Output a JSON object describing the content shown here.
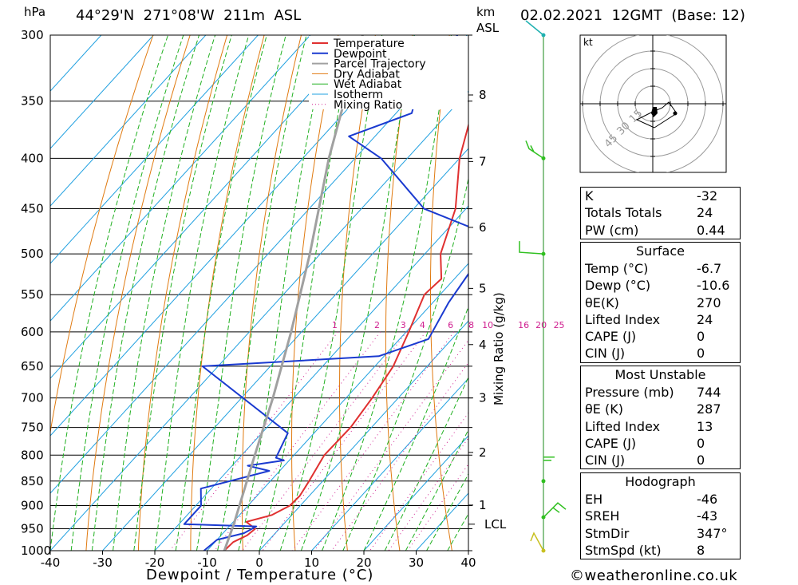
{
  "header": {
    "hpa_label": "hPa",
    "location": "44°29'N  271°08'W  211m  ASL",
    "km_label": "km",
    "asl_label": "ASL",
    "datetime": "02.02.2021  12GMT  (Base: 12)"
  },
  "colors": {
    "temperature": "#e03030",
    "dewpoint": "#1a3ad0",
    "parcel": "#a0a0a0",
    "dry_adiabat": "#e07a10",
    "wet_adiabat": "#20b020",
    "isotherm": "#20a0e0",
    "mixing_ratio": "#d02090"
  },
  "chart_data": {
    "type": "line",
    "title": "",
    "xlabel": "Dewpoint / Temperature (°C)",
    "ylabel": "hPa",
    "right_label": "Mixing Ratio (g/kg)",
    "x_ticks": [
      -40,
      -30,
      -20,
      -10,
      0,
      10,
      20,
      30,
      40
    ],
    "pressure_levels": [
      300,
      350,
      400,
      450,
      500,
      550,
      600,
      650,
      700,
      750,
      800,
      850,
      900,
      950,
      1000
    ],
    "xlim": [
      -40,
      40
    ],
    "ylim": [
      1000,
      300
    ],
    "y_scale": "log",
    "km_ticks": [
      {
        "km": "8",
        "p": 345
      },
      {
        "km": "7",
        "p": 403
      },
      {
        "km": "6",
        "p": 470
      },
      {
        "km": "5",
        "p": 542
      },
      {
        "km": "4",
        "p": 618
      },
      {
        "km": "3",
        "p": 700
      },
      {
        "km": "2",
        "p": 795
      },
      {
        "km": "1",
        "p": 899
      }
    ],
    "lcl": {
      "label": "LCL",
      "p": 940
    },
    "mixing_ratio_labels": [
      "1",
      "2",
      "3",
      "4",
      "6",
      "8",
      "10",
      "16",
      "20",
      "25"
    ],
    "legend": [
      "Temperature",
      "Dewpoint",
      "Parcel Trajectory",
      "Dry Adiabat",
      "Wet Adiabat",
      "Isotherm",
      "Mixing Ratio"
    ],
    "series": [
      {
        "name": "Temperature",
        "points": [
          [
            1000,
            -6.7
          ],
          [
            980,
            -6.5
          ],
          [
            965,
            -5.0
          ],
          [
            950,
            -4.6
          ],
          [
            935,
            -7.5
          ],
          [
            920,
            -3.8
          ],
          [
            900,
            -2.0
          ],
          [
            880,
            -1.8
          ],
          [
            850,
            -2.6
          ],
          [
            800,
            -4.2
          ],
          [
            750,
            -4.0
          ],
          [
            700,
            -5.0
          ],
          [
            650,
            -6.5
          ],
          [
            600,
            -9.5
          ],
          [
            550,
            -13.0
          ],
          [
            530,
            -12.5
          ],
          [
            500,
            -17.0
          ],
          [
            450,
            -22.0
          ],
          [
            400,
            -30.0
          ],
          [
            350,
            -37.0
          ],
          [
            320,
            -40.0
          ],
          [
            300,
            -46.0
          ]
        ]
      },
      {
        "name": "Dewpoint",
        "points": [
          [
            1000,
            -10.6
          ],
          [
            975,
            -10.0
          ],
          [
            960,
            -6.0
          ],
          [
            945,
            -4.8
          ],
          [
            940,
            -19.0
          ],
          [
            900,
            -19.0
          ],
          [
            865,
            -22.0
          ],
          [
            830,
            -12.0
          ],
          [
            820,
            -17.0
          ],
          [
            810,
            -11.0
          ],
          [
            805,
            -13.0
          ],
          [
            760,
            -15.0
          ],
          [
            650,
            -43.0
          ],
          [
            635,
            -11.0
          ],
          [
            610,
            -4.5
          ],
          [
            560,
            -7.0
          ],
          [
            500,
            -9.0
          ],
          [
            480,
            -10.0
          ],
          [
            450,
            -28.0
          ],
          [
            400,
            -45.0
          ],
          [
            380,
            -55.0
          ],
          [
            360,
            -47.0
          ],
          [
            340,
            -50.0
          ],
          [
            320,
            -47.0
          ],
          [
            310,
            -48.0
          ],
          [
            300,
            -52.0
          ]
        ]
      },
      {
        "name": "Parcel Trajectory",
        "points": [
          [
            1000,
            -6.7
          ],
          [
            940,
            -9.5
          ],
          [
            850,
            -14.5
          ],
          [
            800,
            -17.5
          ],
          [
            700,
            -24.0
          ],
          [
            600,
            -32.0
          ],
          [
            500,
            -42.0
          ],
          [
            400,
            -55.0
          ],
          [
            350,
            -62.0
          ],
          [
            300,
            -70.0
          ]
        ]
      }
    ]
  },
  "hodograph": {
    "unit": "kt",
    "ring_labels": [
      "15",
      "30",
      "45"
    ]
  },
  "wind_barbs": [
    {
      "p": 300
    },
    {
      "p": 400
    },
    {
      "p": 500
    },
    {
      "p": 850
    },
    {
      "p": 925
    },
    {
      "p": 1000
    }
  ],
  "indices": {
    "basic": [
      {
        "label": "K",
        "value": "-32"
      },
      {
        "label": "Totals Totals",
        "value": "24"
      },
      {
        "label": "PW (cm)",
        "value": "0.44"
      }
    ],
    "surface_title": "Surface",
    "surface": [
      {
        "label": "Temp (°C)",
        "value": "-6.7"
      },
      {
        "label": "Dewp (°C)",
        "value": "-10.6"
      },
      {
        "label": "θE(K)",
        "value": "270"
      },
      {
        "label": "Lifted Index",
        "value": "24"
      },
      {
        "label": "CAPE (J)",
        "value": "0"
      },
      {
        "label": "CIN (J)",
        "value": "0"
      }
    ],
    "mu_title": "Most Unstable",
    "mu": [
      {
        "label": "Pressure (mb)",
        "value": "744"
      },
      {
        "label": "θE (K)",
        "value": "287"
      },
      {
        "label": "Lifted Index",
        "value": "13"
      },
      {
        "label": "CAPE (J)",
        "value": "0"
      },
      {
        "label": "CIN (J)",
        "value": "0"
      }
    ],
    "hodo_title": "Hodograph",
    "hodo": [
      {
        "label": "EH",
        "value": "-46"
      },
      {
        "label": "SREH",
        "value": "-43"
      },
      {
        "label": "StmDir",
        "value": "347°"
      },
      {
        "label": "StmSpd (kt)",
        "value": "8"
      }
    ]
  },
  "footer": {
    "copyright": "©weatheronline.co.uk"
  }
}
